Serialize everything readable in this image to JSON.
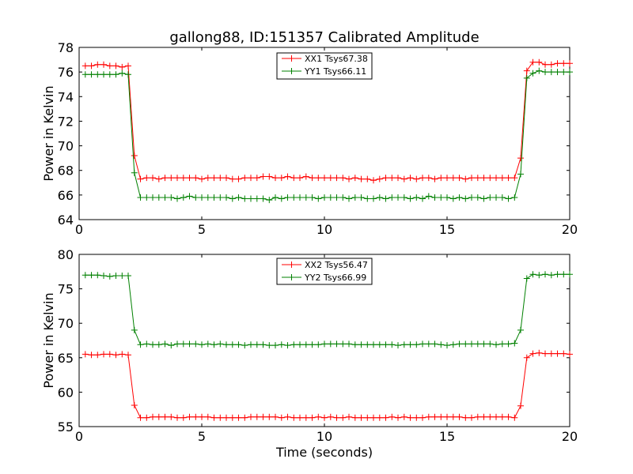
{
  "chart_data": [
    {
      "type": "line",
      "title": "gallong88, ID:151357 Calibrated Amplitude",
      "xlabel": "",
      "ylabel": "Power in Kelvin",
      "xlim": [
        0,
        20
      ],
      "ylim": [
        64,
        78
      ],
      "xticks": [
        0,
        5,
        10,
        15,
        20
      ],
      "yticks": [
        64,
        66,
        68,
        70,
        72,
        74,
        76,
        78
      ],
      "legend_position": "top-center",
      "x": [
        0.25,
        0.5,
        0.75,
        1.0,
        1.25,
        1.5,
        1.75,
        2.0,
        2.25,
        2.5,
        2.75,
        3.0,
        3.25,
        3.5,
        3.75,
        4.0,
        4.25,
        4.5,
        4.75,
        5.0,
        5.25,
        5.5,
        5.75,
        6.0,
        6.25,
        6.5,
        6.75,
        7.0,
        7.25,
        7.5,
        7.75,
        8.0,
        8.25,
        8.5,
        8.75,
        9.0,
        9.25,
        9.5,
        9.75,
        10.0,
        10.25,
        10.5,
        10.75,
        11.0,
        11.25,
        11.5,
        11.75,
        12.0,
        12.25,
        12.5,
        12.75,
        13.0,
        13.25,
        13.5,
        13.75,
        14.0,
        14.25,
        14.5,
        14.75,
        15.0,
        15.25,
        15.5,
        15.75,
        16.0,
        16.25,
        16.5,
        16.75,
        17.0,
        17.25,
        17.5,
        17.75,
        18.0,
        18.25,
        18.5,
        18.75,
        19.0,
        19.25,
        19.5,
        19.75,
        20.0
      ],
      "series": [
        {
          "name": "XX1 Tsys67.38",
          "color": "#ff0000",
          "values": [
            76.5,
            76.5,
            76.6,
            76.6,
            76.5,
            76.5,
            76.4,
            76.5,
            69.2,
            67.3,
            67.4,
            67.4,
            67.3,
            67.4,
            67.4,
            67.4,
            67.4,
            67.4,
            67.4,
            67.3,
            67.4,
            67.4,
            67.4,
            67.4,
            67.3,
            67.3,
            67.4,
            67.4,
            67.4,
            67.5,
            67.5,
            67.4,
            67.4,
            67.5,
            67.4,
            67.4,
            67.5,
            67.4,
            67.4,
            67.4,
            67.4,
            67.4,
            67.4,
            67.3,
            67.4,
            67.3,
            67.3,
            67.2,
            67.3,
            67.4,
            67.4,
            67.4,
            67.3,
            67.4,
            67.3,
            67.4,
            67.4,
            67.3,
            67.4,
            67.4,
            67.4,
            67.4,
            67.3,
            67.4,
            67.4,
            67.4,
            67.4,
            67.4,
            67.4,
            67.4,
            67.4,
            69.0,
            76.1,
            76.8,
            76.8,
            76.6,
            76.6,
            76.7,
            76.7,
            76.7
          ]
        },
        {
          "name": "YY1 Tsys66.11",
          "color": "#008000",
          "values": [
            75.8,
            75.8,
            75.8,
            75.8,
            75.8,
            75.8,
            75.9,
            75.8,
            67.8,
            65.8,
            65.8,
            65.8,
            65.8,
            65.8,
            65.8,
            65.7,
            65.8,
            65.9,
            65.8,
            65.8,
            65.8,
            65.8,
            65.8,
            65.8,
            65.7,
            65.8,
            65.7,
            65.7,
            65.7,
            65.7,
            65.6,
            65.8,
            65.7,
            65.8,
            65.8,
            65.8,
            65.8,
            65.8,
            65.7,
            65.8,
            65.8,
            65.8,
            65.8,
            65.7,
            65.8,
            65.8,
            65.7,
            65.7,
            65.8,
            65.7,
            65.8,
            65.8,
            65.8,
            65.7,
            65.8,
            65.7,
            65.9,
            65.8,
            65.8,
            65.8,
            65.7,
            65.8,
            65.7,
            65.8,
            65.8,
            65.7,
            65.8,
            65.8,
            65.8,
            65.7,
            65.8,
            67.7,
            75.5,
            75.9,
            76.1,
            76.0,
            76.0,
            76.0,
            76.0,
            76.0
          ]
        }
      ]
    },
    {
      "type": "line",
      "title": "",
      "xlabel": "Time (seconds)",
      "ylabel": "Power in Kelvin",
      "xlim": [
        0,
        20
      ],
      "ylim": [
        55,
        80
      ],
      "xticks": [
        0,
        5,
        10,
        15,
        20
      ],
      "yticks": [
        55,
        60,
        65,
        70,
        75,
        80
      ],
      "legend_position": "top-center",
      "x": [
        0.25,
        0.5,
        0.75,
        1.0,
        1.25,
        1.5,
        1.75,
        2.0,
        2.25,
        2.5,
        2.75,
        3.0,
        3.25,
        3.5,
        3.75,
        4.0,
        4.25,
        4.5,
        4.75,
        5.0,
        5.25,
        5.5,
        5.75,
        6.0,
        6.25,
        6.5,
        6.75,
        7.0,
        7.25,
        7.5,
        7.75,
        8.0,
        8.25,
        8.5,
        8.75,
        9.0,
        9.25,
        9.5,
        9.75,
        10.0,
        10.25,
        10.5,
        10.75,
        11.0,
        11.25,
        11.5,
        11.75,
        12.0,
        12.25,
        12.5,
        12.75,
        13.0,
        13.25,
        13.5,
        13.75,
        14.0,
        14.25,
        14.5,
        14.75,
        15.0,
        15.25,
        15.5,
        15.75,
        16.0,
        16.25,
        16.5,
        16.75,
        17.0,
        17.25,
        17.5,
        17.75,
        18.0,
        18.25,
        18.5,
        18.75,
        19.0,
        19.25,
        19.5,
        19.75,
        20.0
      ],
      "series": [
        {
          "name": "XX2 Tsys56.47",
          "color": "#ff0000",
          "values": [
            65.5,
            65.4,
            65.4,
            65.5,
            65.5,
            65.4,
            65.5,
            65.4,
            58.1,
            56.3,
            56.3,
            56.4,
            56.4,
            56.4,
            56.4,
            56.3,
            56.3,
            56.4,
            56.4,
            56.4,
            56.4,
            56.3,
            56.3,
            56.3,
            56.3,
            56.3,
            56.3,
            56.4,
            56.4,
            56.4,
            56.4,
            56.4,
            56.3,
            56.4,
            56.3,
            56.3,
            56.3,
            56.3,
            56.4,
            56.3,
            56.4,
            56.3,
            56.3,
            56.4,
            56.3,
            56.3,
            56.3,
            56.3,
            56.3,
            56.3,
            56.4,
            56.3,
            56.4,
            56.3,
            56.3,
            56.3,
            56.4,
            56.4,
            56.4,
            56.4,
            56.4,
            56.4,
            56.3,
            56.3,
            56.4,
            56.4,
            56.4,
            56.4,
            56.4,
            56.4,
            56.3,
            58.0,
            65.0,
            65.6,
            65.7,
            65.6,
            65.6,
            65.6,
            65.6,
            65.5
          ]
        },
        {
          "name": "YY2 Tsys66.99",
          "color": "#008000",
          "values": [
            77.0,
            77.0,
            77.0,
            76.9,
            76.8,
            76.9,
            76.9,
            76.9,
            69.0,
            66.9,
            67.0,
            66.9,
            66.9,
            67.0,
            66.8,
            67.0,
            67.0,
            67.0,
            67.0,
            66.9,
            67.0,
            66.9,
            67.0,
            66.9,
            66.9,
            66.9,
            66.8,
            66.9,
            66.9,
            66.9,
            66.8,
            66.8,
            66.9,
            66.8,
            66.9,
            66.9,
            66.9,
            66.9,
            66.9,
            67.0,
            67.0,
            67.0,
            67.0,
            67.0,
            66.9,
            66.9,
            66.9,
            66.9,
            66.9,
            66.9,
            66.9,
            66.8,
            66.9,
            66.9,
            66.9,
            67.0,
            67.0,
            67.0,
            66.9,
            66.8,
            66.9,
            67.0,
            67.0,
            67.0,
            67.0,
            67.0,
            67.0,
            66.9,
            67.0,
            67.0,
            67.1,
            69.0,
            76.5,
            77.1,
            77.0,
            77.1,
            77.0,
            77.1,
            77.1,
            77.1
          ]
        }
      ]
    }
  ]
}
